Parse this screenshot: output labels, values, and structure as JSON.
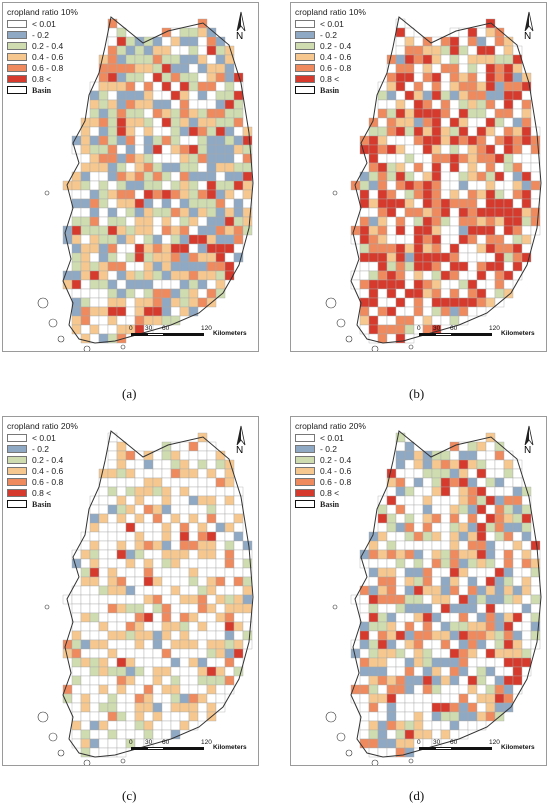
{
  "legend_items": [
    {
      "label": "< 0.01",
      "color": "#ffffff"
    },
    {
      "label": "- 0.2",
      "color": "#8fa8c4"
    },
    {
      "label": "0.2 - 0.4",
      "color": "#cfdcb0"
    },
    {
      "label": "0.4 - 0.6",
      "color": "#f6c88f"
    },
    {
      "label": "0.6 - 0.8",
      "color": "#ef8a5e"
    },
    {
      "label": "0.8 <",
      "color": "#d63a2c"
    }
  ],
  "basin_label": "Basin",
  "north_label": "N",
  "scale": {
    "ticks": [
      "0",
      "30",
      "60",
      "120"
    ],
    "unit": "Kilometers"
  },
  "panels": [
    {
      "id": "a",
      "caption": "(a)",
      "legend_title": "cropland ratio 10%",
      "class_weights": [
        0.18,
        0.18,
        0.2,
        0.22,
        0.14,
        0.08
      ]
    },
    {
      "id": "b",
      "caption": "(b)",
      "legend_title": "cropland ratio 10%",
      "class_weights": [
        0.3,
        0.04,
        0.07,
        0.12,
        0.2,
        0.27
      ]
    },
    {
      "id": "c",
      "caption": "(c)",
      "legend_title": "cropland ratio 20%",
      "class_weights": [
        0.52,
        0.04,
        0.1,
        0.26,
        0.06,
        0.02
      ]
    },
    {
      "id": "d",
      "caption": "(d)",
      "legend_title": "cropland ratio 20%",
      "class_weights": [
        0.36,
        0.16,
        0.12,
        0.14,
        0.13,
        0.09
      ]
    }
  ]
}
